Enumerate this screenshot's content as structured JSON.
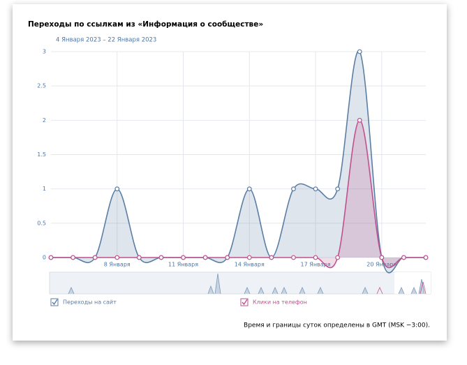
{
  "chart_data": {
    "type": "line",
    "title": "Переходы по ссылкам из «Информация о сообществе»",
    "subtitle": "4 Января 2023 – 22 Января 2023",
    "categories": [
      null,
      null,
      null,
      "8 Января",
      null,
      null,
      "11 Января",
      null,
      null,
      "14 Января",
      null,
      null,
      "17 Января",
      null,
      null,
      "20 Января",
      null,
      null
    ],
    "series": [
      {
        "name": "Переходы на сайт",
        "color": "#5b7ea4",
        "values": [
          0,
          0,
          0,
          1,
          0,
          0,
          0,
          0,
          0,
          1,
          0,
          1,
          1,
          1,
          3,
          0,
          0,
          0
        ]
      },
      {
        "name": "Клики на телефон",
        "color": "#c0508e",
        "values": [
          0,
          0,
          0,
          0,
          0,
          0,
          0,
          0,
          0,
          0,
          0,
          0,
          0,
          0,
          2,
          0,
          0,
          0
        ]
      }
    ],
    "ylim": [
      0,
      3
    ],
    "yticks": [
      0,
      0.5,
      1,
      1.5,
      2,
      2.5,
      3
    ],
    "grid": true,
    "note": "Время и границы суток определены в GMT (MSK −3:00)."
  }
}
